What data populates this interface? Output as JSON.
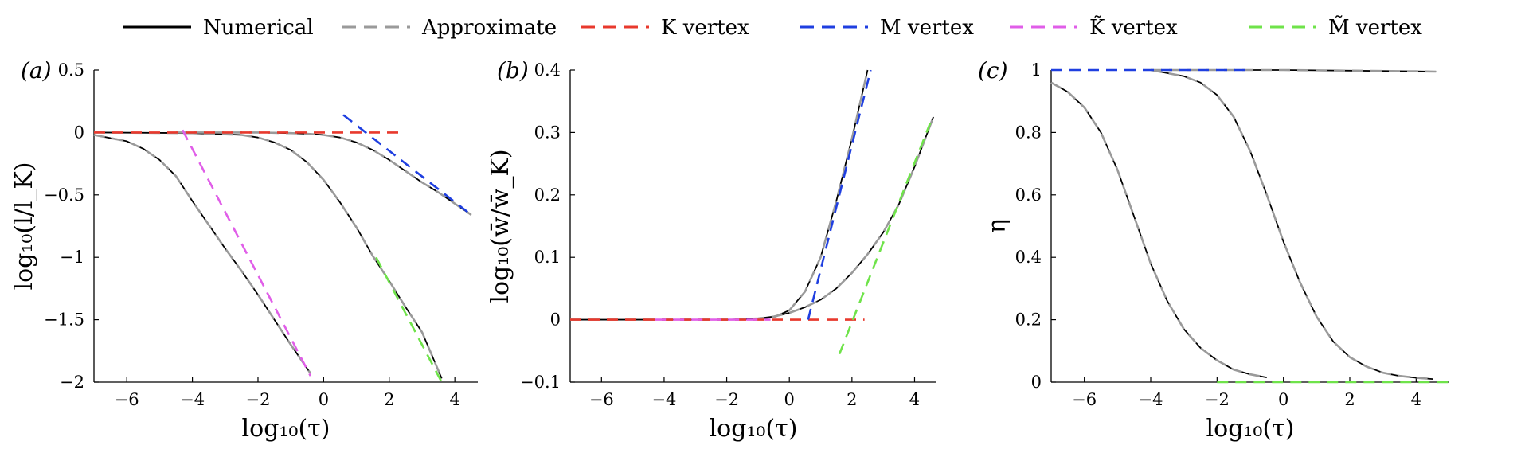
{
  "legend": {
    "items": [
      {
        "label": "Numerical",
        "color": "#000000",
        "dash": "solid"
      },
      {
        "label": "Approximate",
        "color": "#9a9a9a",
        "dash": "dashed"
      },
      {
        "label": "K vertex",
        "color": "#e8392d",
        "dash": "dashed"
      },
      {
        "label": "M vertex",
        "color": "#1f3fe0",
        "dash": "dashed"
      },
      {
        "label": "K̃ vertex",
        "color": "#e05ee8",
        "dash": "dashed"
      },
      {
        "label": "M̃ vertex",
        "color": "#6fe34a",
        "dash": "dashed"
      }
    ]
  },
  "chart_data": [
    {
      "type": "line",
      "panel_label": "(a)",
      "xlabel": "log₁₀(τ)",
      "ylabel": "log₁₀(l/l_K)",
      "xlim": [
        -7,
        4.7
      ],
      "ylim": [
        -2,
        0.5
      ],
      "xticks": [
        -6,
        -4,
        -2,
        0,
        2,
        4
      ],
      "xtick_labels": [
        "−6",
        "−4",
        "−2",
        "0",
        "2",
        "4"
      ],
      "yticks": [
        -2,
        -1.5,
        -1,
        -0.5,
        0,
        0.5
      ],
      "ytick_labels": [
        "−2",
        "−1.5",
        "−1",
        "−0.5",
        "0",
        "0.5"
      ],
      "series": [
        {
          "kind": "numerical",
          "x": [
            -7,
            -6,
            -5.5,
            -5,
            -4.5,
            -4,
            -3.5,
            -3,
            -2.5,
            -2,
            -1.5,
            -1,
            -0.4
          ],
          "y": [
            -0.02,
            -0.07,
            -0.13,
            -0.22,
            -0.35,
            -0.55,
            -0.74,
            -0.93,
            -1.11,
            -1.3,
            -1.5,
            -1.7,
            -1.93
          ]
        },
        {
          "kind": "approximate",
          "x": [
            -7,
            -6,
            -5.5,
            -5,
            -4.5,
            -4,
            -3.5,
            -3,
            -2.5,
            -2,
            -1.5,
            -1,
            -0.4
          ],
          "y": [
            -0.02,
            -0.07,
            -0.13,
            -0.22,
            -0.35,
            -0.55,
            -0.74,
            -0.93,
            -1.11,
            -1.3,
            -1.5,
            -1.7,
            -1.93
          ]
        },
        {
          "kind": "numerical",
          "x": [
            -7,
            -4,
            -2.5,
            -2,
            -1.5,
            -1,
            -0.5,
            0,
            0.5,
            1,
            1.5,
            2,
            2.5,
            3,
            3.6
          ],
          "y": [
            0,
            -0.005,
            -0.02,
            -0.04,
            -0.08,
            -0.14,
            -0.24,
            -0.38,
            -0.56,
            -0.76,
            -0.99,
            -1.19,
            -1.4,
            -1.6,
            -1.97
          ]
        },
        {
          "kind": "approximate",
          "x": [
            -7,
            -4,
            -2.5,
            -2,
            -1.5,
            -1,
            -0.5,
            0,
            0.5,
            1,
            1.5,
            2,
            2.5,
            3,
            3.6
          ],
          "y": [
            0,
            -0.005,
            -0.02,
            -0.04,
            -0.08,
            -0.14,
            -0.24,
            -0.38,
            -0.56,
            -0.76,
            -0.99,
            -1.19,
            -1.4,
            -1.6,
            -1.97
          ]
        },
        {
          "kind": "numerical",
          "x": [
            -4.5,
            -2,
            -1,
            -0.5,
            0,
            0.5,
            1,
            1.5,
            2,
            2.5,
            3,
            3.5,
            4,
            4.5
          ],
          "y": [
            0,
            0,
            -0.005,
            -0.01,
            -0.02,
            -0.04,
            -0.08,
            -0.14,
            -0.22,
            -0.31,
            -0.4,
            -0.48,
            -0.57,
            -0.66
          ]
        },
        {
          "kind": "approximate",
          "x": [
            -4.5,
            -2,
            -1,
            -0.5,
            0,
            0.5,
            1,
            1.5,
            2,
            2.5,
            3,
            3.5,
            4,
            4.5
          ],
          "y": [
            0,
            0,
            -0.005,
            -0.01,
            -0.02,
            -0.04,
            -0.08,
            -0.14,
            -0.22,
            -0.31,
            -0.4,
            -0.48,
            -0.57,
            -0.66
          ]
        },
        {
          "kind": "k-vertex",
          "x": [
            -7,
            2.4
          ],
          "y": [
            0,
            0
          ]
        },
        {
          "kind": "k-tilde-vertex",
          "x": [
            -4.3,
            -0.4
          ],
          "y": [
            0.02,
            -1.95
          ]
        },
        {
          "kind": "m-tilde-vertex",
          "x": [
            1.6,
            3.6
          ],
          "y": [
            -1.0,
            -2.0
          ]
        },
        {
          "kind": "m-vertex",
          "x": [
            0.6,
            4.5
          ],
          "y": [
            0.14,
            -0.66
          ]
        }
      ]
    },
    {
      "type": "line",
      "panel_label": "(b)",
      "xlabel": "log₁₀(τ)",
      "ylabel": "log₁₀(w̄/w̄_K)",
      "xlim": [
        -7,
        4.7
      ],
      "ylim": [
        -0.1,
        0.4
      ],
      "xticks": [
        -6,
        -4,
        -2,
        0,
        2,
        4
      ],
      "xtick_labels": [
        "−6",
        "−4",
        "−2",
        "0",
        "2",
        "4"
      ],
      "yticks": [
        -0.1,
        0,
        0.1,
        0.2,
        0.3,
        0.4
      ],
      "ytick_labels": [
        "−0.1",
        "0",
        "0.1",
        "0.2",
        "0.3",
        "0.4"
      ],
      "series": [
        {
          "kind": "numerical",
          "x": [
            -7,
            -2,
            -1,
            -0.5,
            0,
            0.5,
            1,
            1.5,
            2,
            2.5
          ],
          "y": [
            0,
            0,
            0.001,
            0.004,
            0.015,
            0.045,
            0.1,
            0.19,
            0.29,
            0.4
          ]
        },
        {
          "kind": "approximate",
          "x": [
            -7,
            -2,
            -1,
            -0.5,
            0,
            0.5,
            1,
            1.5,
            2,
            2.5
          ],
          "y": [
            0,
            0,
            0.001,
            0.004,
            0.015,
            0.045,
            0.1,
            0.19,
            0.29,
            0.4
          ]
        },
        {
          "kind": "numerical",
          "x": [
            -7,
            -2,
            -1,
            -0.5,
            0,
            0.5,
            1,
            1.5,
            2,
            2.5,
            3,
            3.5,
            4,
            4.6
          ],
          "y": [
            0,
            0,
            0.002,
            0.005,
            0.011,
            0.02,
            0.032,
            0.05,
            0.075,
            0.105,
            0.14,
            0.185,
            0.245,
            0.325
          ]
        },
        {
          "kind": "approximate",
          "x": [
            -7,
            -2,
            -1,
            -0.5,
            0,
            0.5,
            1,
            1.5,
            2,
            2.5,
            3,
            3.5,
            4,
            4.6
          ],
          "y": [
            0,
            0,
            0.002,
            0.005,
            0.011,
            0.02,
            0.032,
            0.05,
            0.075,
            0.105,
            0.14,
            0.185,
            0.245,
            0.325
          ]
        },
        {
          "kind": "k-vertex",
          "x": [
            -7,
            2.4
          ],
          "y": [
            0,
            0
          ]
        },
        {
          "kind": "k-tilde-vertex",
          "x": [
            -4.3,
            -0.6
          ],
          "y": [
            0,
            0
          ]
        },
        {
          "kind": "m-vertex",
          "x": [
            0.6,
            2.6
          ],
          "y": [
            0,
            0.4
          ]
        },
        {
          "kind": "m-tilde-vertex",
          "x": [
            1.6,
            4.5
          ],
          "y": [
            -0.055,
            0.315
          ]
        }
      ]
    },
    {
      "type": "line",
      "panel_label": "(c)",
      "xlabel": "log₁₀(τ)",
      "ylabel": "η",
      "xlim": [
        -7,
        5
      ],
      "ylim": [
        0,
        1
      ],
      "xticks": [
        -6,
        -4,
        -2,
        0,
        2,
        4
      ],
      "xtick_labels": [
        "−6",
        "−4",
        "−2",
        "0",
        "2",
        "4"
      ],
      "yticks": [
        0,
        0.2,
        0.4,
        0.6,
        0.8,
        1
      ],
      "ytick_labels": [
        "0",
        "0.2",
        "0.4",
        "0.6",
        "0.8",
        "1"
      ],
      "series": [
        {
          "kind": "numerical",
          "x": [
            -7,
            -6.5,
            -6,
            -5.5,
            -5,
            -4.5,
            -4,
            -3.5,
            -3,
            -2.5,
            -2,
            -1.5,
            -1,
            -0.5
          ],
          "y": [
            0.96,
            0.93,
            0.88,
            0.8,
            0.68,
            0.53,
            0.38,
            0.26,
            0.17,
            0.11,
            0.07,
            0.04,
            0.025,
            0.015
          ]
        },
        {
          "kind": "approximate",
          "x": [
            -7,
            -6.5,
            -6,
            -5.5,
            -5,
            -4.5,
            -4,
            -3.5,
            -3,
            -2.5,
            -2,
            -1.5,
            -1,
            -0.5
          ],
          "y": [
            0.96,
            0.93,
            0.88,
            0.8,
            0.68,
            0.53,
            0.38,
            0.26,
            0.17,
            0.11,
            0.07,
            0.04,
            0.025,
            0.015
          ]
        },
        {
          "kind": "numerical",
          "x": [
            -4,
            -3,
            -2.5,
            -2,
            -1.5,
            -1,
            -0.5,
            0,
            0.5,
            1,
            1.5,
            2,
            2.5,
            3,
            3.5,
            4,
            4.5
          ],
          "y": [
            1.0,
            0.98,
            0.96,
            0.92,
            0.85,
            0.74,
            0.6,
            0.45,
            0.32,
            0.21,
            0.13,
            0.08,
            0.05,
            0.03,
            0.02,
            0.014,
            0.01
          ]
        },
        {
          "kind": "approximate",
          "x": [
            -4,
            -3,
            -2.5,
            -2,
            -1.5,
            -1,
            -0.5,
            0,
            0.5,
            1,
            1.5,
            2,
            2.5,
            3,
            3.5,
            4,
            4.5
          ],
          "y": [
            1.0,
            0.98,
            0.96,
            0.92,
            0.85,
            0.74,
            0.6,
            0.45,
            0.32,
            0.21,
            0.13,
            0.08,
            0.05,
            0.03,
            0.02,
            0.014,
            0.01
          ]
        },
        {
          "kind": "numerical",
          "x": [
            -4,
            -2,
            0,
            2,
            4,
            4.6
          ],
          "y": [
            1.0,
            1.0,
            1.0,
            0.998,
            0.996,
            0.995
          ]
        },
        {
          "kind": "approximate",
          "x": [
            -4,
            -2,
            0,
            2,
            4,
            4.6
          ],
          "y": [
            1.0,
            1.0,
            1.0,
            0.998,
            0.996,
            0.995
          ]
        },
        {
          "kind": "m-vertex",
          "x": [
            -7,
            -1
          ],
          "y": [
            1.0,
            1.0
          ]
        },
        {
          "kind": "m-tilde-vertex",
          "x": [
            -2,
            5
          ],
          "y": [
            0,
            0
          ]
        }
      ]
    }
  ]
}
